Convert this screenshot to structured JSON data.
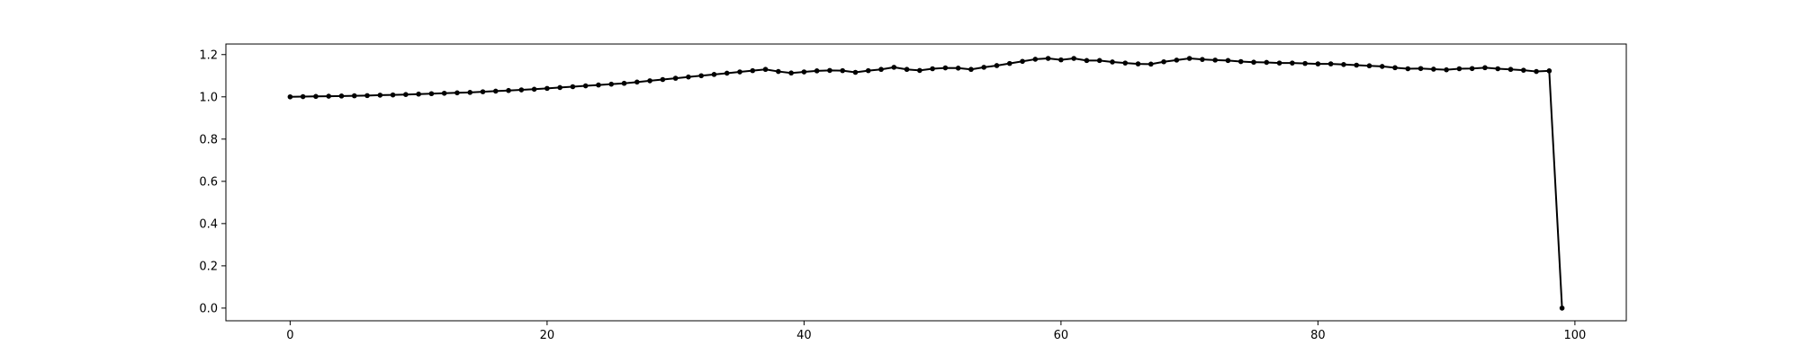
{
  "chart_data": {
    "type": "line",
    "title": "",
    "xlabel": "",
    "ylabel": "",
    "xlim": [
      -5,
      104
    ],
    "ylim": [
      -0.06,
      1.25
    ],
    "xticks": [
      0,
      20,
      40,
      60,
      80,
      100
    ],
    "yticks": [
      0.0,
      0.2,
      0.4,
      0.6,
      0.8,
      1.0,
      1.2
    ],
    "grid": false,
    "line_color": "#000000",
    "marker": "circle",
    "series": [
      {
        "x": [
          0,
          1,
          2,
          3,
          4,
          5,
          6,
          7,
          8,
          9,
          10,
          11,
          12,
          13,
          14,
          15,
          16,
          17,
          18,
          19,
          20,
          21,
          22,
          23,
          24,
          25,
          26,
          27,
          28,
          29,
          30,
          31,
          32,
          33,
          34,
          35,
          36,
          37,
          38,
          39,
          40,
          41,
          42,
          43,
          44,
          45,
          46,
          47,
          48,
          49,
          50,
          51,
          52,
          53,
          54,
          55,
          56,
          57,
          58,
          59,
          60,
          61,
          62,
          63,
          64,
          65,
          66,
          67,
          68,
          69,
          70,
          71,
          72,
          73,
          74,
          75,
          76,
          77,
          78,
          79,
          80,
          81,
          82,
          83,
          84,
          85,
          86,
          87,
          88,
          89,
          90,
          91,
          92,
          93,
          94,
          95,
          96,
          97,
          98,
          99
        ],
        "y": [
          1.0,
          1.001,
          1.002,
          1.003,
          1.004,
          1.005,
          1.006,
          1.008,
          1.009,
          1.011,
          1.013,
          1.015,
          1.017,
          1.019,
          1.021,
          1.024,
          1.027,
          1.03,
          1.033,
          1.036,
          1.04,
          1.044,
          1.048,
          1.052,
          1.056,
          1.06,
          1.064,
          1.07,
          1.076,
          1.082,
          1.088,
          1.094,
          1.1,
          1.106,
          1.112,
          1.118,
          1.124,
          1.13,
          1.12,
          1.113,
          1.118,
          1.123,
          1.125,
          1.124,
          1.116,
          1.124,
          1.13,
          1.14,
          1.13,
          1.125,
          1.133,
          1.137,
          1.136,
          1.13,
          1.14,
          1.148,
          1.158,
          1.168,
          1.178,
          1.182,
          1.175,
          1.182,
          1.172,
          1.172,
          1.165,
          1.16,
          1.156,
          1.155,
          1.166,
          1.174,
          1.182,
          1.177,
          1.174,
          1.172,
          1.167,
          1.164,
          1.163,
          1.16,
          1.16,
          1.158,
          1.156,
          1.156,
          1.153,
          1.15,
          1.147,
          1.144,
          1.138,
          1.133,
          1.134,
          1.131,
          1.128,
          1.133,
          1.134,
          1.138,
          1.133,
          1.13,
          1.126,
          1.12,
          1.123,
          0.0
        ]
      }
    ]
  }
}
